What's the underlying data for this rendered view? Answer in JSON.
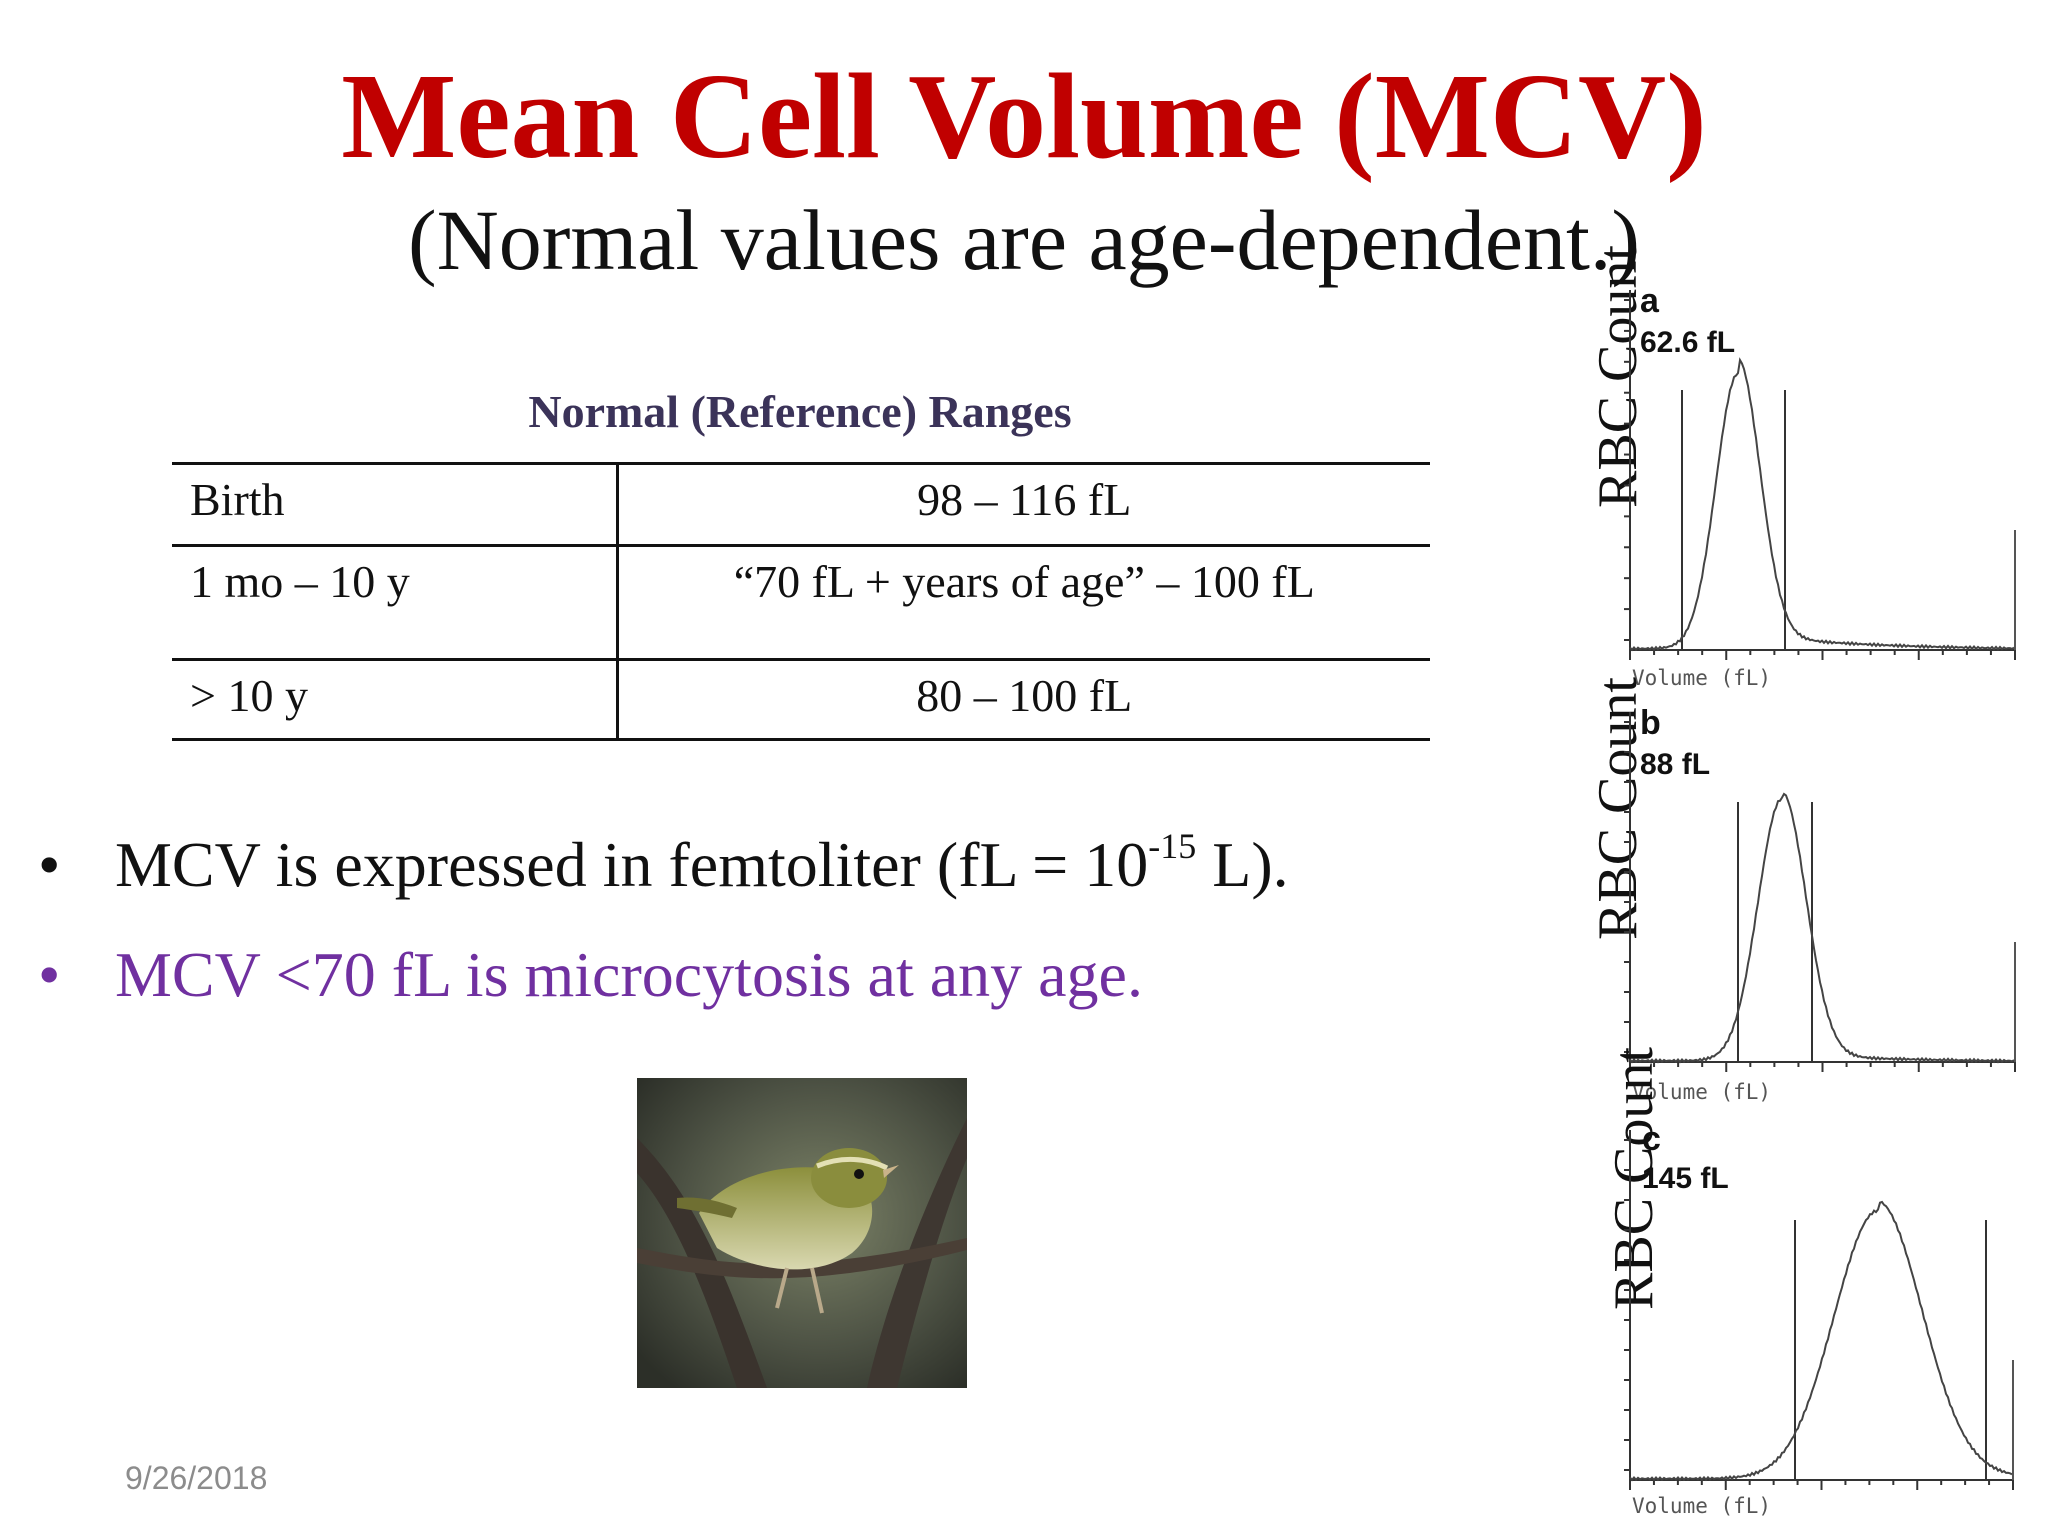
{
  "slide": {
    "title": "Mean Cell Volume (MCV)",
    "subtitle": "(Normal values are age-dependent.)",
    "date": "9/26/2018"
  },
  "table": {
    "caption": "Normal (Reference) Ranges",
    "rows": [
      {
        "age": "Birth",
        "range": "98 – 116 fL"
      },
      {
        "age": "1 mo – 10 y",
        "range": "“70 fL + years of age” – 100 fL"
      },
      {
        "age": "> 10 y",
        "range": "80 – 100 fL"
      }
    ]
  },
  "bullets": {
    "b1_pre": "MCV is expressed in femtoliter (fL = 10",
    "b1_sup": "-15",
    "b1_post": " L).",
    "b2": "MCV <70 fL is microcytosis at any age.",
    "marker": "•"
  },
  "histograms": {
    "ylabel": "RBC Count",
    "xlabel": "Volume (fL)",
    "panels": [
      {
        "letter": "a",
        "value": "62.6 fL"
      },
      {
        "letter": "b",
        "value": "88 fL"
      },
      {
        "letter": "c",
        "value": "145 fL"
      }
    ]
  },
  "colors": {
    "title": "#c00000",
    "caption": "#3b3359",
    "bullet2": "#7030a0",
    "date": "#8c8c8c"
  },
  "image": {
    "icon": "bird-photo"
  }
}
